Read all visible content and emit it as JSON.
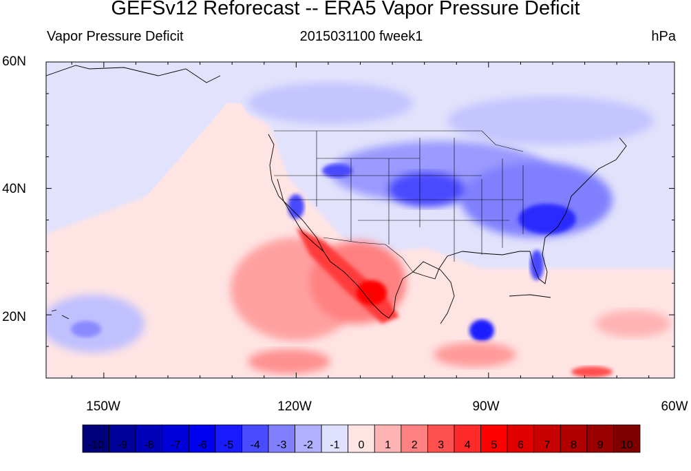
{
  "figure": {
    "title": "GEFSv12 Reforecast -- ERA5 Vapor Pressure Deficit",
    "left_subtitle": "Vapor Pressure Deficit",
    "center_subtitle": "2015031100 fweek1",
    "right_subtitle": "hPa"
  },
  "map": {
    "lat_labels": [
      "60N",
      "40N",
      "20N"
    ],
    "lon_labels": [
      "150W",
      "120W",
      "90W",
      "60W"
    ],
    "lat_range": [
      10,
      60
    ],
    "lon_range": [
      -159,
      -61
    ]
  },
  "colorbar": {
    "labels": [
      "-10",
      "-9",
      "-8",
      "-7",
      "-6",
      "-5",
      "-4",
      "-3",
      "-2",
      "-1",
      "0",
      "1",
      "2",
      "3",
      "4",
      "5",
      "6",
      "7",
      "8",
      "9",
      "10"
    ],
    "colors": [
      "#00007a",
      "#00009a",
      "#0000b8",
      "#0000d8",
      "#0000f0",
      "#1a1aff",
      "#4a4aff",
      "#8080ff",
      "#b0b0ff",
      "#e0e0ff",
      "#ffe4e4",
      "#ffb4b4",
      "#ff8080",
      "#ff5050",
      "#ff2a2a",
      "#ff0000",
      "#e00000",
      "#c80000",
      "#b00000",
      "#980000",
      "#800000"
    ]
  }
}
